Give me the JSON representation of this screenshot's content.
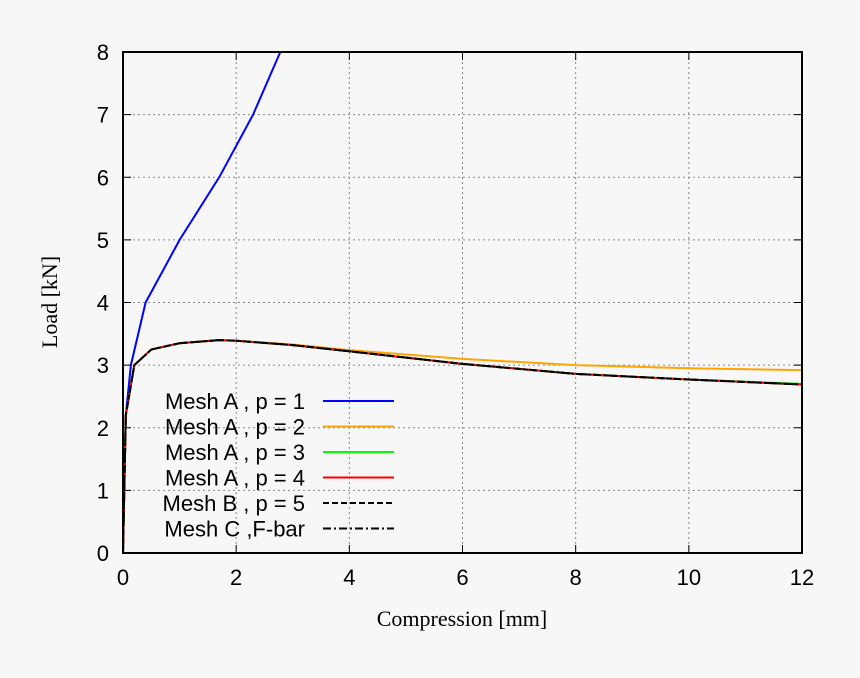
{
  "chart_data": {
    "type": "line",
    "xlabel": "Compression [mm]",
    "ylabel": "Load [kN]",
    "xlim": [
      0,
      12
    ],
    "ylim": [
      0,
      8
    ],
    "xticks": [
      0,
      2,
      4,
      6,
      8,
      10,
      12
    ],
    "yticks": [
      0,
      1,
      2,
      3,
      4,
      5,
      6,
      7,
      8
    ],
    "grid": true,
    "legend_position": "bottom-left",
    "series": [
      {
        "name": "Mesh A , p = 1",
        "color": "#0000ff",
        "dash": "solid",
        "x": [
          0,
          0.05,
          0.14,
          0.4,
          1.0,
          1.7,
          2.3,
          2.78
        ],
        "y": [
          0,
          2.2,
          3,
          4,
          5,
          6,
          7,
          8
        ]
      },
      {
        "name": "Mesh A , p = 2",
        "color": "#ffa500",
        "dash": "solid",
        "x": [
          0,
          0.05,
          0.2,
          0.5,
          1,
          1.7,
          2,
          3,
          4,
          6,
          8,
          10,
          12
        ],
        "y": [
          0,
          2.2,
          3.0,
          3.25,
          3.35,
          3.4,
          3.39,
          3.33,
          3.24,
          3.1,
          3.0,
          2.95,
          2.92
        ]
      },
      {
        "name": "Mesh A , p = 3",
        "color": "#00ff00",
        "dash": "solid",
        "x": [
          0,
          0.05,
          0.2,
          0.5,
          1,
          1.7,
          2,
          3,
          4,
          6,
          8,
          10,
          12
        ],
        "y": [
          0,
          2.2,
          3.0,
          3.25,
          3.35,
          3.4,
          3.39,
          3.32,
          3.22,
          3.02,
          2.86,
          2.77,
          2.7
        ]
      },
      {
        "name": "Mesh A , p = 4",
        "color": "#ff0000",
        "dash": "solid",
        "x": [
          0,
          0.05,
          0.2,
          0.5,
          1,
          1.7,
          2,
          3,
          4,
          6,
          8,
          10,
          12
        ],
        "y": [
          0,
          2.2,
          3.0,
          3.25,
          3.35,
          3.4,
          3.39,
          3.32,
          3.22,
          3.02,
          2.86,
          2.77,
          2.69
        ]
      },
      {
        "name": "Mesh B , p = 5",
        "color": "#000000",
        "dash": "dashed",
        "x": [
          0,
          0.05,
          0.2,
          0.5,
          1,
          1.7,
          2,
          3,
          4,
          6,
          8,
          10,
          12
        ],
        "y": [
          0,
          2.2,
          3.0,
          3.25,
          3.35,
          3.4,
          3.39,
          3.32,
          3.22,
          3.02,
          2.86,
          2.77,
          2.69
        ]
      },
      {
        "name": "Mesh C ,F-bar",
        "color": "#000000",
        "dash": "dashdot",
        "x": [
          0,
          0.05,
          0.2,
          0.5,
          1,
          1.7,
          2,
          3,
          4,
          6,
          8,
          10,
          12
        ],
        "y": [
          0,
          2.2,
          3.0,
          3.25,
          3.35,
          3.4,
          3.39,
          3.32,
          3.22,
          3.02,
          2.86,
          2.77,
          2.69
        ]
      }
    ]
  }
}
